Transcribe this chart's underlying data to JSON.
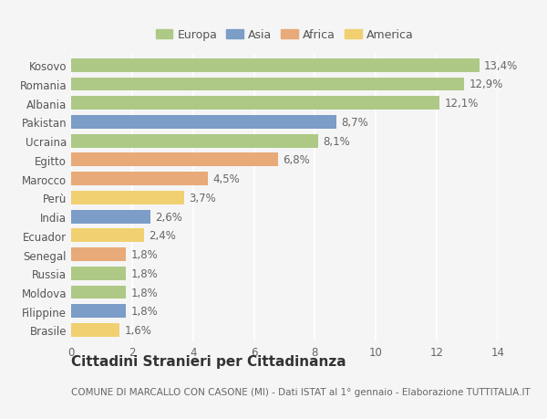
{
  "categories": [
    "Kosovo",
    "Romania",
    "Albania",
    "Pakistan",
    "Ucraina",
    "Egitto",
    "Marocco",
    "Perù",
    "India",
    "Ecuador",
    "Senegal",
    "Russia",
    "Moldova",
    "Filippine",
    "Brasile"
  ],
  "values": [
    13.4,
    12.9,
    12.1,
    8.7,
    8.1,
    6.8,
    4.5,
    3.7,
    2.6,
    2.4,
    1.8,
    1.8,
    1.8,
    1.8,
    1.6
  ],
  "labels": [
    "13,4%",
    "12,9%",
    "12,1%",
    "8,7%",
    "8,1%",
    "6,8%",
    "4,5%",
    "3,7%",
    "2,6%",
    "2,4%",
    "1,8%",
    "1,8%",
    "1,8%",
    "1,8%",
    "1,6%"
  ],
  "continents": [
    "Europa",
    "Europa",
    "Europa",
    "Asia",
    "Europa",
    "Africa",
    "Africa",
    "America",
    "Asia",
    "America",
    "Africa",
    "Europa",
    "Europa",
    "Asia",
    "America"
  ],
  "colors": {
    "Europa": "#adc985",
    "Asia": "#7b9dc7",
    "Africa": "#e8aa78",
    "America": "#f0d070"
  },
  "xlim": [
    0,
    14
  ],
  "xticks": [
    0,
    2,
    4,
    6,
    8,
    10,
    12,
    14
  ],
  "title": "Cittadini Stranieri per Cittadinanza",
  "subtitle": "COMUNE DI MARCALLO CON CASONE (MI) - Dati ISTAT al 1° gennaio - Elaborazione TUTTITALIA.IT",
  "background_color": "#f5f5f5",
  "grid_color": "#ffffff",
  "bar_height": 0.72,
  "label_fontsize": 8.5,
  "title_fontsize": 11,
  "subtitle_fontsize": 7.5
}
